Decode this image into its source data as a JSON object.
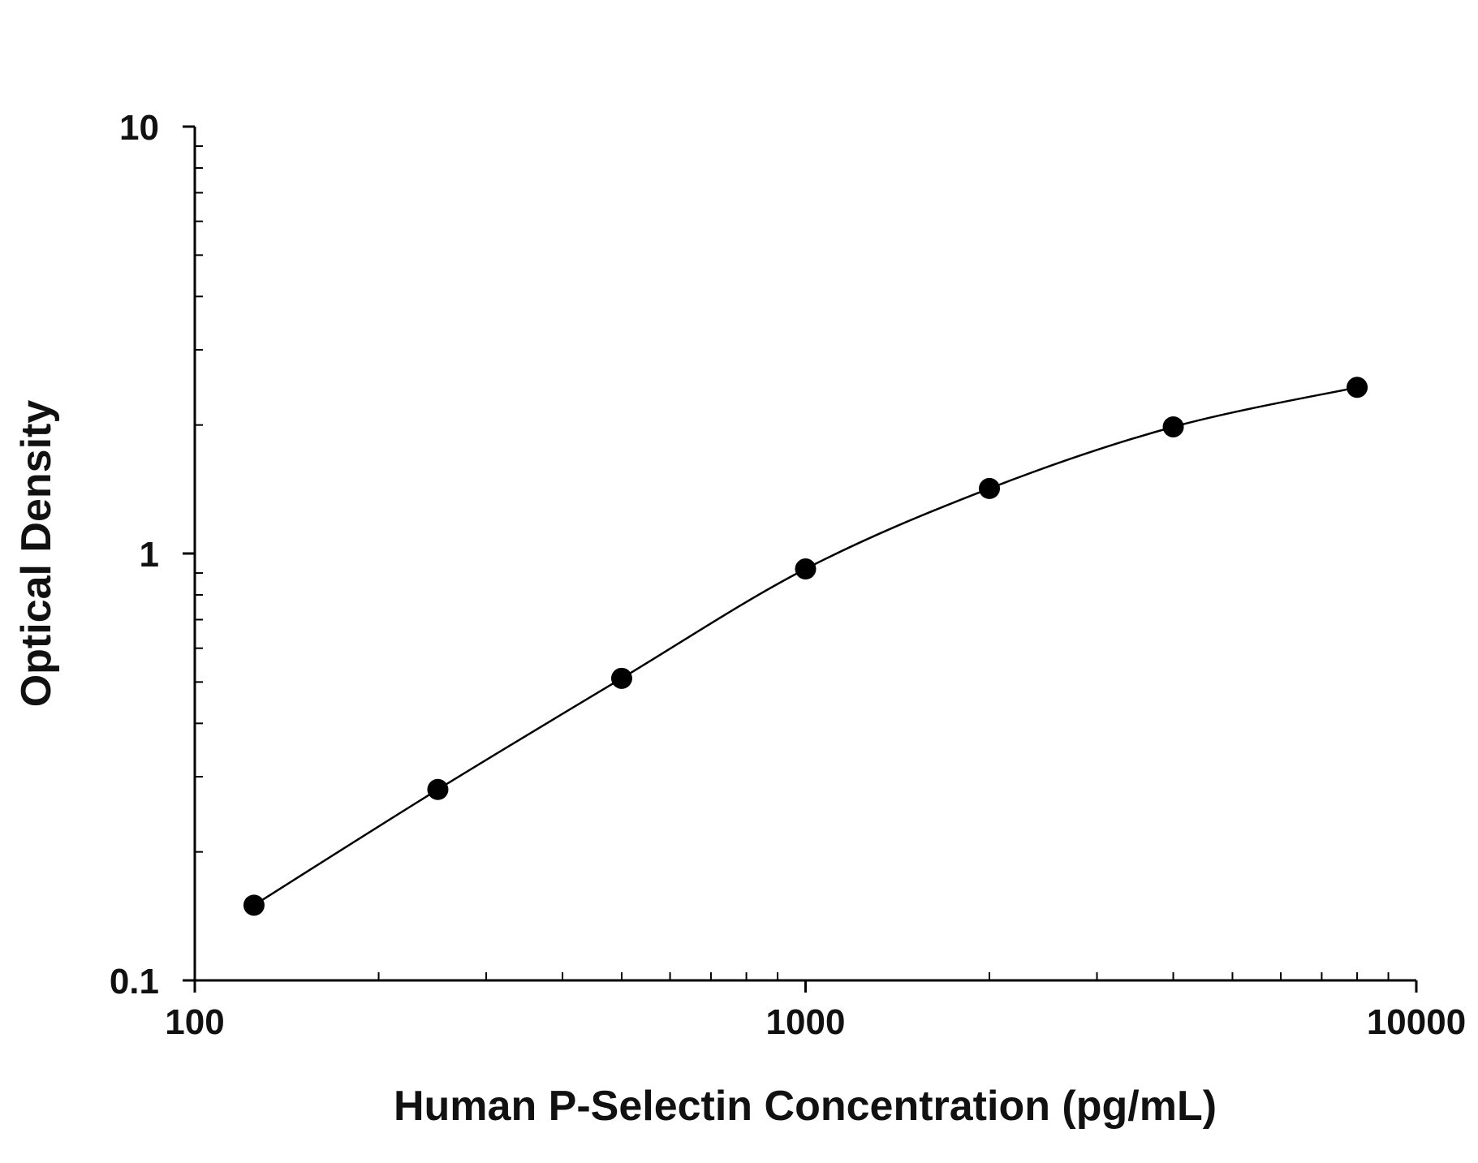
{
  "chart_data": {
    "type": "scatter",
    "title": "",
    "xlabel": "Human P-Selectin Concentration (pg/mL)",
    "ylabel": "Optical Density",
    "x_scale": "log",
    "y_scale": "log",
    "xlim": [
      100,
      10000
    ],
    "ylim": [
      0.1,
      10
    ],
    "x_ticks": [
      {
        "value": 100,
        "label": "100"
      },
      {
        "value": 1000,
        "label": "1000"
      },
      {
        "value": 10000,
        "label": "10000"
      }
    ],
    "y_ticks": [
      {
        "value": 0.1,
        "label": "0.1"
      },
      {
        "value": 1,
        "label": "1"
      },
      {
        "value": 10,
        "label": "10"
      }
    ],
    "grid": false,
    "legend": "none",
    "series": [
      {
        "x": [
          125,
          250,
          500,
          1000,
          2000,
          4000,
          8000
        ],
        "y": [
          0.15,
          0.28,
          0.51,
          0.92,
          1.42,
          1.98,
          2.45
        ],
        "marker": "circle",
        "fit_line": true
      }
    ],
    "colors": {
      "marker": "#000000",
      "line": "#000000",
      "axis": "#000000"
    }
  }
}
